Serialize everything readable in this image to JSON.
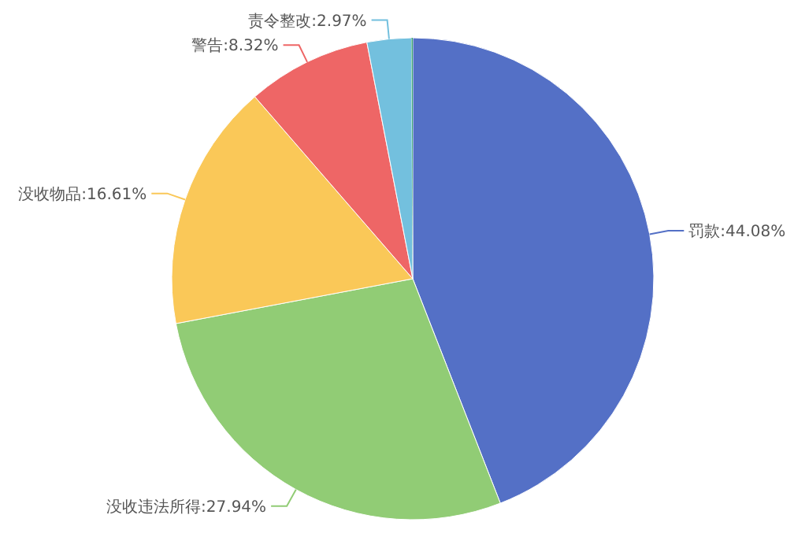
{
  "chart_data": {
    "type": "pie",
    "categories": [
      "罚款",
      "没收违法所得",
      "没收物品",
      "警告",
      "责令整改",
      null
    ],
    "values": [
      44.08,
      27.94,
      16.61,
      8.32,
      2.97,
      0.08
    ],
    "colors": [
      "#5470c6",
      "#91cc75",
      "#fac858",
      "#ee6666",
      "#73c0de",
      "#3ba272"
    ],
    "value_labels": [
      ":44.08%",
      ":27.94%",
      ":16.61%",
      ":8.32%",
      ":2.97%",
      null
    ]
  }
}
